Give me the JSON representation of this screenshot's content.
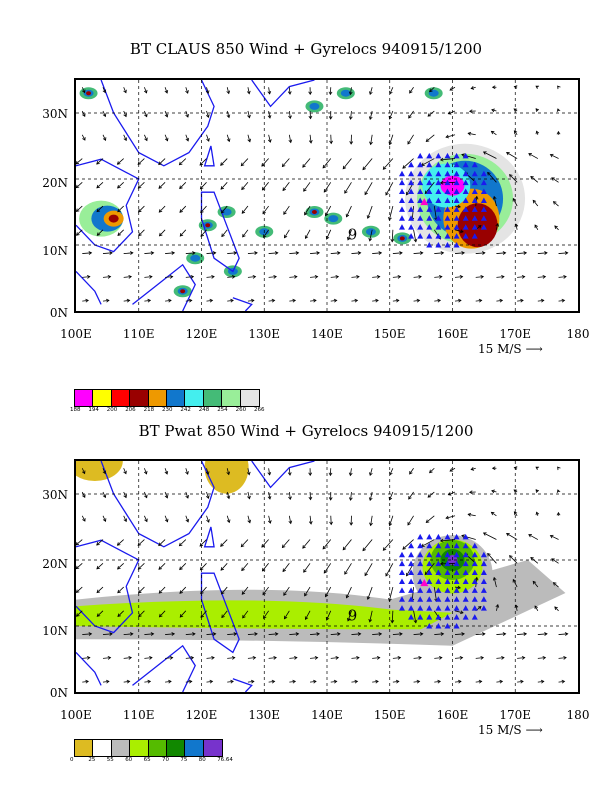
{
  "panel1": {
    "title": "BT CLAUS 850 Wind + Gyrelocs 940915/1200",
    "colorbar_values": [
      "188",
      "194",
      "200",
      "206",
      "218",
      "230",
      "242",
      "248",
      "254",
      "260",
      "266"
    ],
    "colorbar_colors": [
      "#ff00ff",
      "#ffff00",
      "#ff0000",
      "#990000",
      "#ee9900",
      "#1177cc",
      "#44eeee",
      "#44bb77",
      "#99ee99",
      "#e4e4e4"
    ]
  },
  "panel2": {
    "title": "BT Pwat 850 Wind + Gyrelocs 940915/1200",
    "colorbar_values": [
      "0",
      "25",
      "55",
      "60",
      "65",
      "70",
      "75",
      "80",
      "76.64"
    ],
    "colorbar_colors": [
      "#ddbb22",
      "#ffffff",
      "#bbbbbb",
      "#aaee00",
      "#55bb00",
      "#118800",
      "#1177cc",
      "#7733cc"
    ]
  },
  "axes": {
    "lat_labels": [
      "0N",
      "10N",
      "20N",
      "30N"
    ],
    "lon_labels": [
      "100E",
      "110E",
      "120E",
      "130E",
      "140E",
      "150E",
      "160E",
      "170E",
      "180"
    ],
    "ref_vector": "15 M/S"
  },
  "gyre_label": "9",
  "colors": {
    "land": "#1a1aee",
    "gyre_triangles": "#1a1aee",
    "center": "#ff00cc"
  }
}
